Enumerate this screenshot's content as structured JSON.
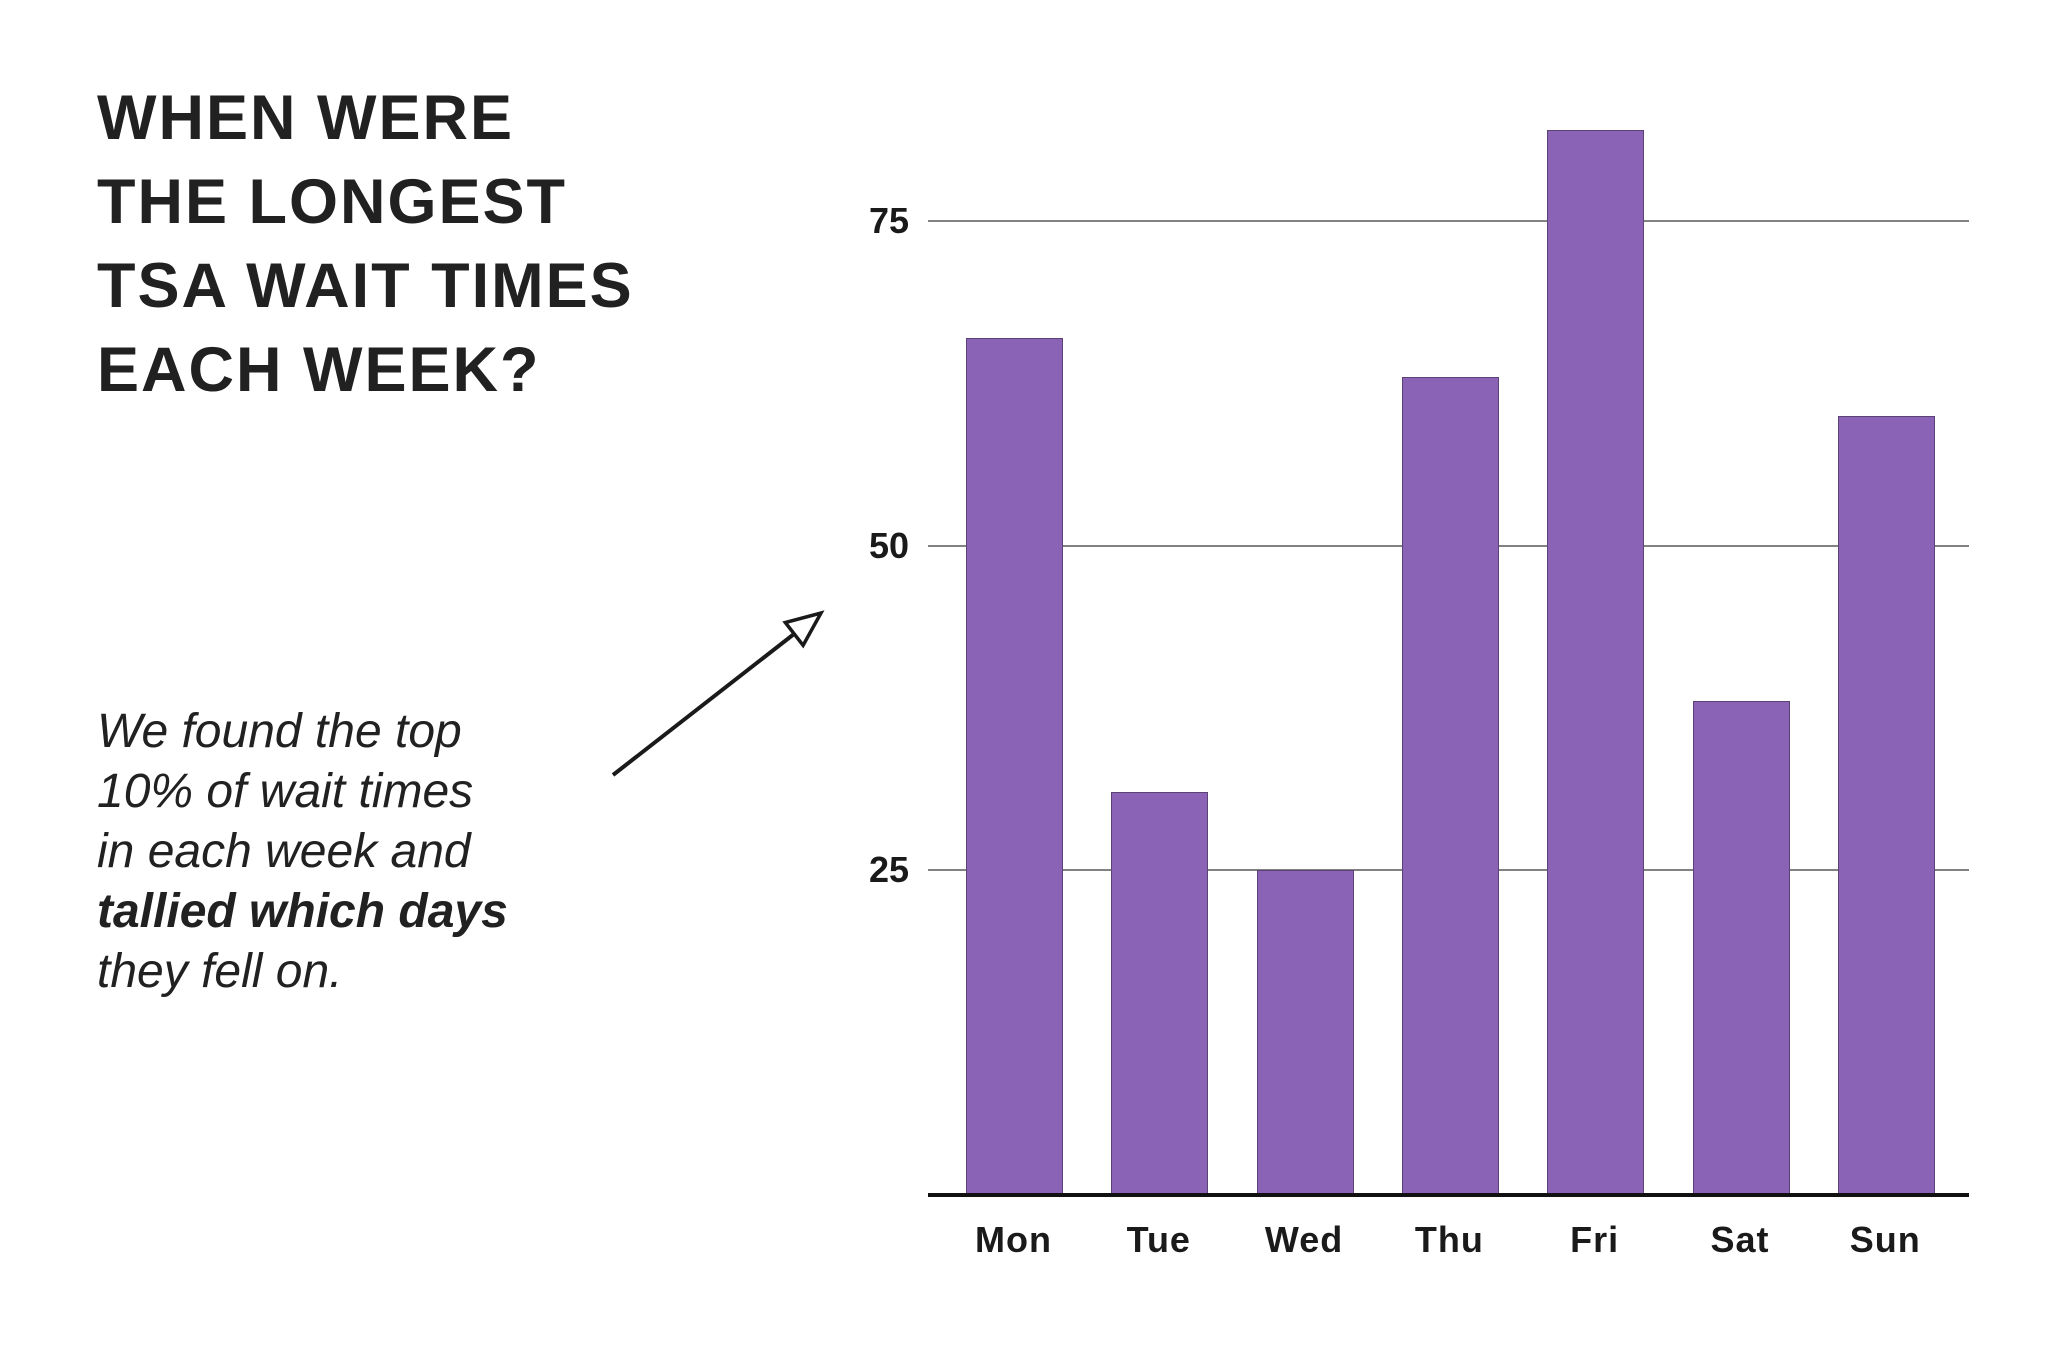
{
  "page": {
    "background": "#ffffff"
  },
  "title": {
    "lines": [
      "WHEN WERE",
      "THE LONGEST",
      "TSA WAIT TIMES",
      "EACH WEEK?"
    ],
    "color": "#212121"
  },
  "annotation": {
    "lines": [
      {
        "text": "We found the top",
        "bold": false
      },
      {
        "text": "10% of wait times",
        "bold": false
      },
      {
        "text": "in each week and",
        "bold": false
      },
      {
        "text": "tallied which days",
        "bold": true
      },
      {
        "text": "they fell on.",
        "bold": false
      }
    ],
    "color": "#212121"
  },
  "arrow": {
    "color": "#1a1a1a"
  },
  "chart_data": {
    "type": "bar",
    "categories": [
      "Mon",
      "Tue",
      "Wed",
      "Thu",
      "Fri",
      "Sat",
      "Sun"
    ],
    "values": [
      66,
      31,
      25,
      63,
      82,
      38,
      60
    ],
    "title": "",
    "xlabel": "",
    "ylabel": "",
    "y_ticks": [
      25,
      50,
      75
    ],
    "ylim": [
      0,
      84
    ],
    "grid": "horizontal-only",
    "legend": "none",
    "bar_color": "#8A63B7",
    "axis_color": "#111111",
    "gridline_color": "#828282",
    "tick_label_color": "#1a1a1a"
  }
}
